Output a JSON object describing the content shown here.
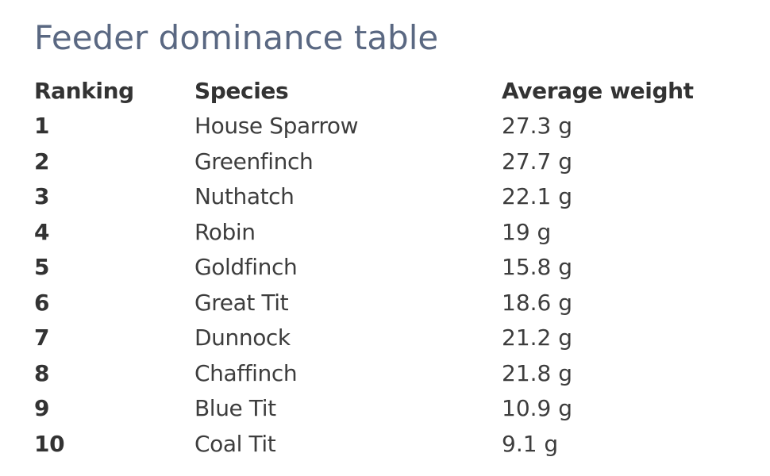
{
  "title": "Feeder dominance table",
  "table": {
    "headers": {
      "rank": "Ranking",
      "species": "Species",
      "weight": "Average weight"
    },
    "rows": [
      {
        "rank": "1",
        "species": "House Sparrow",
        "weight": "27.3 g"
      },
      {
        "rank": "2",
        "species": "Greenfinch",
        "weight": "27.7 g"
      },
      {
        "rank": "3",
        "species": "Nuthatch",
        "weight": "22.1 g"
      },
      {
        "rank": "4",
        "species": "Robin",
        "weight": "19 g"
      },
      {
        "rank": "5",
        "species": "Goldfinch",
        "weight": "15.8 g"
      },
      {
        "rank": "6",
        "species": "Great Tit",
        "weight": "18.6 g"
      },
      {
        "rank": "7",
        "species": "Dunnock",
        "weight": "21.2 g"
      },
      {
        "rank": "8",
        "species": "Chaffinch",
        "weight": "21.8 g"
      },
      {
        "rank": "9",
        "species": "Blue Tit",
        "weight": "10.9 g"
      },
      {
        "rank": "10",
        "species": "Coal Tit",
        "weight": "9.1 g"
      }
    ]
  }
}
